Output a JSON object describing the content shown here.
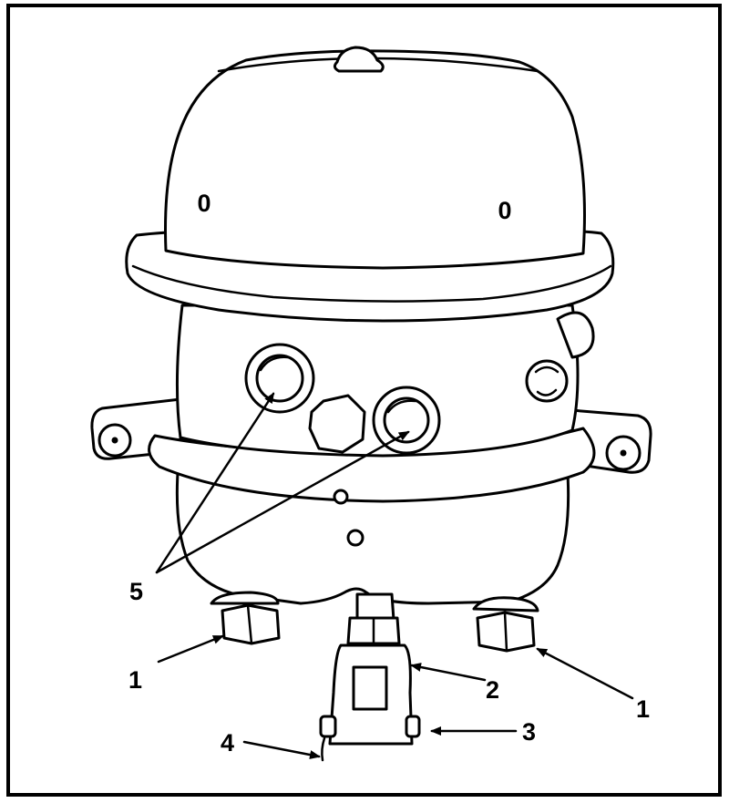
{
  "figure": {
    "callouts": [
      {
        "id": "c5",
        "label": "5"
      },
      {
        "id": "c1a",
        "label": "1"
      },
      {
        "id": "c1b",
        "label": "1"
      },
      {
        "id": "c2",
        "label": "2"
      },
      {
        "id": "c3",
        "label": "3"
      },
      {
        "id": "c4",
        "label": "4"
      }
    ],
    "housing_marks": [
      "0",
      "0"
    ]
  }
}
